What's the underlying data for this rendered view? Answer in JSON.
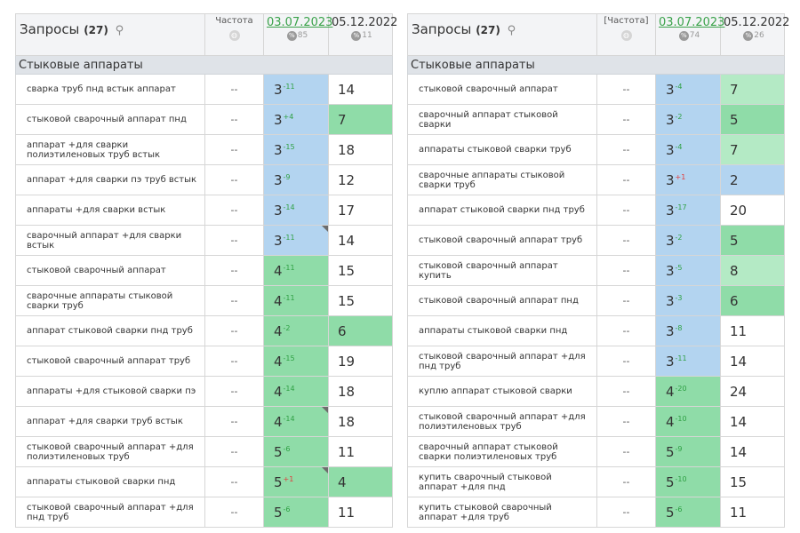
{
  "panels": [
    {
      "title": "Запросы",
      "count": "(27)",
      "freq_label": "Частота",
      "date1": "03.07.2023",
      "date1_pct": "85",
      "date2": "05.12.2022",
      "date2_pct": "11",
      "group": "Стыковые аппараты",
      "rows": [
        {
          "q": "сварка труб пнд встык аппарат",
          "f": "--",
          "p1": "3",
          "c": "-11",
          "cd": "up",
          "bg1": "blue",
          "tri": false,
          "p2": "14",
          "bg2": ""
        },
        {
          "q": "стыковой сварочный аппарат пнд",
          "f": "--",
          "p1": "3",
          "c": "+4",
          "cd": "up",
          "bg1": "blue",
          "tri": false,
          "p2": "7",
          "bg2": "green"
        },
        {
          "q": "аппарат +для сварки полиэтиленовых труб встык",
          "f": "--",
          "p1": "3",
          "c": "-15",
          "cd": "up",
          "bg1": "blue",
          "tri": false,
          "p2": "18",
          "bg2": ""
        },
        {
          "q": "аппарат +для сварки пэ труб встык",
          "f": "--",
          "p1": "3",
          "c": "-9",
          "cd": "up",
          "bg1": "blue",
          "tri": false,
          "p2": "12",
          "bg2": ""
        },
        {
          "q": "аппараты +для сварки встык",
          "f": "--",
          "p1": "3",
          "c": "-14",
          "cd": "up",
          "bg1": "blue",
          "tri": false,
          "p2": "17",
          "bg2": ""
        },
        {
          "q": "сварочный аппарат +для сварки встык",
          "f": "--",
          "p1": "3",
          "c": "-11",
          "cd": "up",
          "bg1": "blue",
          "tri": true,
          "p2": "14",
          "bg2": ""
        },
        {
          "q": "стыковой сварочный аппарат",
          "f": "--",
          "p1": "4",
          "c": "-11",
          "cd": "up",
          "bg1": "green",
          "tri": false,
          "p2": "15",
          "bg2": ""
        },
        {
          "q": "сварочные аппараты стыковой сварки труб",
          "f": "--",
          "p1": "4",
          "c": "-11",
          "cd": "up",
          "bg1": "green",
          "tri": false,
          "p2": "15",
          "bg2": ""
        },
        {
          "q": "аппарат стыковой сварки пнд труб",
          "f": "--",
          "p1": "4",
          "c": "-2",
          "cd": "up",
          "bg1": "green",
          "tri": false,
          "p2": "6",
          "bg2": "green"
        },
        {
          "q": "стыковой сварочный аппарат труб",
          "f": "--",
          "p1": "4",
          "c": "-15",
          "cd": "up",
          "bg1": "green",
          "tri": false,
          "p2": "19",
          "bg2": ""
        },
        {
          "q": "аппараты +для стыковой сварки пэ",
          "f": "--",
          "p1": "4",
          "c": "-14",
          "cd": "up",
          "bg1": "green",
          "tri": false,
          "p2": "18",
          "bg2": ""
        },
        {
          "q": "аппарат +для сварки труб встык",
          "f": "--",
          "p1": "4",
          "c": "-14",
          "cd": "up",
          "bg1": "green",
          "tri": true,
          "p2": "18",
          "bg2": ""
        },
        {
          "q": "стыковой сварочный аппарат +для полиэтиленовых труб",
          "f": "--",
          "p1": "5",
          "c": "-6",
          "cd": "up",
          "bg1": "green",
          "tri": false,
          "p2": "11",
          "bg2": ""
        },
        {
          "q": "аппараты стыковой сварки пнд",
          "f": "--",
          "p1": "5",
          "c": "+1",
          "cd": "down",
          "bg1": "green",
          "tri": true,
          "p2": "4",
          "bg2": "green"
        },
        {
          "q": "стыковой сварочный аппарат +для пнд труб",
          "f": "--",
          "p1": "5",
          "c": "-6",
          "cd": "up",
          "bg1": "green",
          "tri": false,
          "p2": "11",
          "bg2": ""
        }
      ]
    },
    {
      "title": "Запросы",
      "count": "(27)",
      "freq_label": "[Частота]",
      "date1": "03.07.2023",
      "date1_pct": "74",
      "date2": "05.12.2022",
      "date2_pct": "26",
      "group": "Стыковые аппараты",
      "rows": [
        {
          "q": "стыковой сварочный аппарат",
          "f": "--",
          "p1": "3",
          "c": "-4",
          "cd": "up",
          "bg1": "blue",
          "tri": false,
          "p2": "7",
          "bg2": "lgreen"
        },
        {
          "q": "сварочный аппарат стыковой сварки",
          "f": "--",
          "p1": "3",
          "c": "-2",
          "cd": "up",
          "bg1": "blue",
          "tri": false,
          "p2": "5",
          "bg2": "green"
        },
        {
          "q": "аппараты стыковой сварки труб",
          "f": "--",
          "p1": "3",
          "c": "-4",
          "cd": "up",
          "bg1": "blue",
          "tri": false,
          "p2": "7",
          "bg2": "lgreen"
        },
        {
          "q": "сварочные аппараты стыковой сварки труб",
          "f": "--",
          "p1": "3",
          "c": "+1",
          "cd": "down",
          "bg1": "blue",
          "tri": false,
          "p2": "2",
          "bg2": "blue"
        },
        {
          "q": "аппарат стыковой сварки пнд труб",
          "f": "--",
          "p1": "3",
          "c": "-17",
          "cd": "up",
          "bg1": "blue",
          "tri": false,
          "p2": "20",
          "bg2": ""
        },
        {
          "q": "стыковой сварочный аппарат труб",
          "f": "--",
          "p1": "3",
          "c": "-2",
          "cd": "up",
          "bg1": "blue",
          "tri": false,
          "p2": "5",
          "bg2": "green"
        },
        {
          "q": "стыковой сварочный аппарат купить",
          "f": "--",
          "p1": "3",
          "c": "-5",
          "cd": "up",
          "bg1": "blue",
          "tri": false,
          "p2": "8",
          "bg2": "lgreen"
        },
        {
          "q": "стыковой сварочный аппарат пнд",
          "f": "--",
          "p1": "3",
          "c": "-3",
          "cd": "up",
          "bg1": "blue",
          "tri": false,
          "p2": "6",
          "bg2": "green"
        },
        {
          "q": "аппараты стыковой сварки пнд",
          "f": "--",
          "p1": "3",
          "c": "-8",
          "cd": "up",
          "bg1": "blue",
          "tri": false,
          "p2": "11",
          "bg2": ""
        },
        {
          "q": "стыковой сварочный аппарат +для пнд труб",
          "f": "--",
          "p1": "3",
          "c": "-11",
          "cd": "up",
          "bg1": "blue",
          "tri": false,
          "p2": "14",
          "bg2": ""
        },
        {
          "q": "куплю аппарат стыковой сварки",
          "f": "--",
          "p1": "4",
          "c": "-20",
          "cd": "up",
          "bg1": "green",
          "tri": false,
          "p2": "24",
          "bg2": ""
        },
        {
          "q": "стыковой сварочный аппарат +для полиэтиленовых труб",
          "f": "--",
          "p1": "4",
          "c": "-10",
          "cd": "up",
          "bg1": "green",
          "tri": false,
          "p2": "14",
          "bg2": ""
        },
        {
          "q": "сварочный аппарат стыковой сварки полиэтиленовых труб",
          "f": "--",
          "p1": "5",
          "c": "-9",
          "cd": "up",
          "bg1": "green",
          "tri": false,
          "p2": "14",
          "bg2": ""
        },
        {
          "q": "купить сварочный стыковой аппарат +для пнд",
          "f": "--",
          "p1": "5",
          "c": "-10",
          "cd": "up",
          "bg1": "green",
          "tri": false,
          "p2": "15",
          "bg2": ""
        },
        {
          "q": "купить стыковой сварочный аппарат +для труб",
          "f": "--",
          "p1": "5",
          "c": "-6",
          "cd": "up",
          "bg1": "green",
          "tri": false,
          "p2": "11",
          "bg2": ""
        }
      ]
    }
  ],
  "colors": {
    "blue_cell": "#b3d4f0",
    "green_cell": "#8fdca8",
    "light_green_cell": "#b4eac5",
    "date_link": "#3aa24a",
    "change_up": "#2ea043",
    "change_down": "#e23b3b"
  },
  "icons": [
    "search-icon",
    "globe-icon",
    "percent-icon",
    "corner-marker-icon"
  ]
}
